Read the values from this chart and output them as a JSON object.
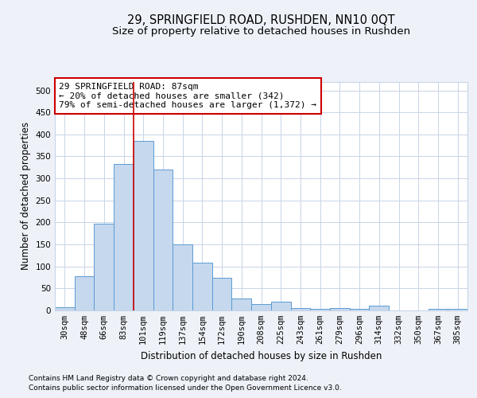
{
  "title": "29, SPRINGFIELD ROAD, RUSHDEN, NN10 0QT",
  "subtitle": "Size of property relative to detached houses in Rushden",
  "xlabel": "Distribution of detached houses by size in Rushden",
  "ylabel": "Number of detached properties",
  "bar_labels": [
    "30sqm",
    "48sqm",
    "66sqm",
    "83sqm",
    "101sqm",
    "119sqm",
    "137sqm",
    "154sqm",
    "172sqm",
    "190sqm",
    "208sqm",
    "225sqm",
    "243sqm",
    "261sqm",
    "279sqm",
    "296sqm",
    "314sqm",
    "332sqm",
    "350sqm",
    "367sqm",
    "385sqm"
  ],
  "bar_heights": [
    8,
    78,
    197,
    333,
    386,
    320,
    150,
    108,
    74,
    28,
    15,
    19,
    6,
    3,
    5,
    3,
    10,
    0,
    0,
    3,
    3
  ],
  "bar_color": "#c5d8ed",
  "bar_edge_color": "#5b9bd5",
  "bar_width": 1.0,
  "ylim": [
    0,
    520
  ],
  "yticks": [
    0,
    50,
    100,
    150,
    200,
    250,
    300,
    350,
    400,
    450,
    500
  ],
  "vline_x": 3.5,
  "vline_color": "#cc0000",
  "annotation_text": "29 SPRINGFIELD ROAD: 87sqm\n← 20% of detached houses are smaller (342)\n79% of semi-detached houses are larger (1,372) →",
  "annotation_box_color": "#ffffff",
  "annotation_box_edge_color": "#cc0000",
  "footer_line1": "Contains HM Land Registry data © Crown copyright and database right 2024.",
  "footer_line2": "Contains public sector information licensed under the Open Government Licence v3.0.",
  "background_color": "#eef2f8",
  "plot_bg_color": "#ffffff",
  "grid_color": "#c8d4e8",
  "title_fontsize": 10.5,
  "subtitle_fontsize": 9.5,
  "axis_label_fontsize": 8.5,
  "tick_fontsize": 7.5,
  "annotation_fontsize": 8,
  "footer_fontsize": 6.5
}
